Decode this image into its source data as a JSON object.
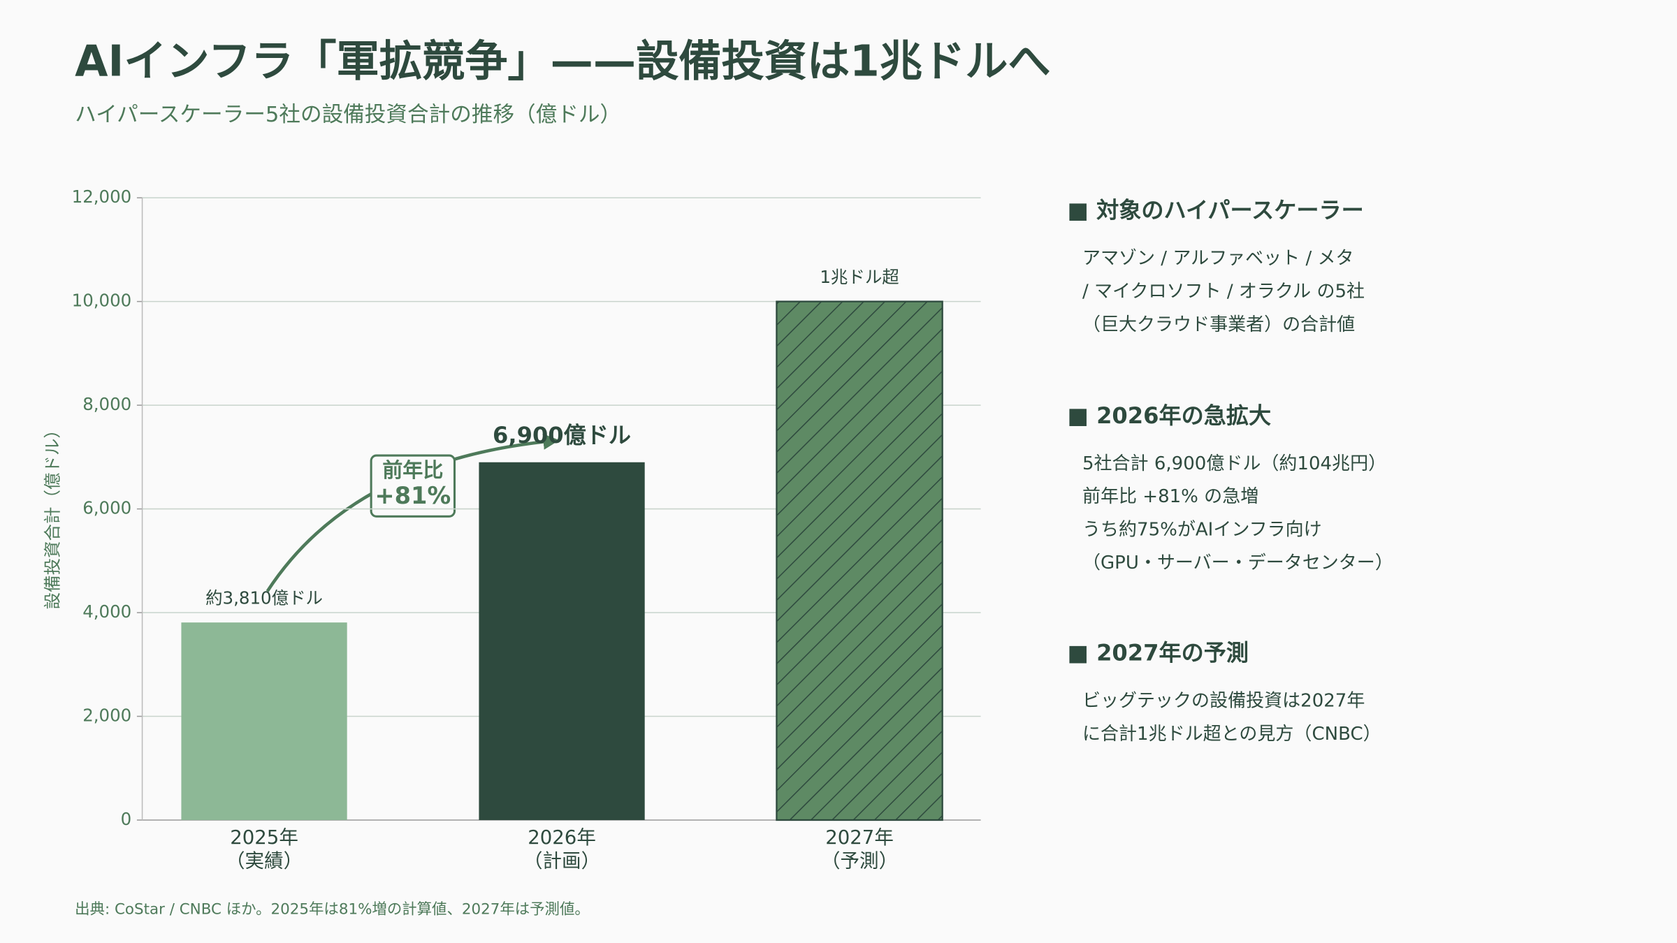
{
  "chart_data": {
    "type": "bar",
    "title": "AIインフラ「軍拡競争」——設備投資は1兆ドルへ",
    "subtitle": "ハイパースケーラー5社の設備投資合計の推移（億ドル）",
    "y_label": "設備投資合計（億ドル）",
    "categories": [
      [
        "2025年",
        "（実績）"
      ],
      [
        "2026年",
        "（計画）"
      ],
      [
        "2027年",
        "（予測）"
      ]
    ],
    "values": [
      3810,
      6900,
      10000
    ],
    "value_labels": [
      "約3,810億ドル",
      "6,900億ドル",
      "1兆ドル超"
    ],
    "colors": [
      "#8db896",
      "#2e4a3e",
      "#5e8a64"
    ],
    "hatch": [
      false,
      false,
      true
    ],
    "ylim": [
      0,
      12000
    ],
    "yticks": [
      0,
      {
        "value": 2000,
        "label": "2,000"
      },
      {
        "value": 4000,
        "label": "4,000"
      },
      {
        "value": 6000,
        "label": "6,000"
      },
      {
        "value": 8000,
        "label": "8,000"
      },
      {
        "value": 10000,
        "label": "10,000"
      },
      {
        "value": 12000,
        "label": "12,000"
      }
    ],
    "grid": true,
    "annotation": {
      "lines": [
        "前年比",
        "+81%"
      ]
    }
  },
  "panel": {
    "sections": [
      {
        "heading": "■ 対象のハイパースケーラー",
        "lines": [
          "アマゾン / アルファベット / メタ",
          "/ マイクロソフト / オラクル の5社",
          "（巨大クラウド事業者）の合計値"
        ]
      },
      {
        "heading": "■ 2026年の急拡大",
        "lines": [
          "5社合計 6,900億ドル（約104兆円）",
          "前年比 +81% の急増",
          "うち約75%がAIインフラ向け",
          "（GPU・サーバー・データセンター）"
        ]
      },
      {
        "heading": "■ 2027年の予測",
        "lines": [
          "ビッグテックの設備投資は2027年",
          "に合計1兆ドル超との見方（CNBC）"
        ]
      }
    ]
  },
  "footer": {
    "source": "出典: CoStar / CNBC ほか。2025年は81%増の計算値、2027年は予測値。"
  }
}
